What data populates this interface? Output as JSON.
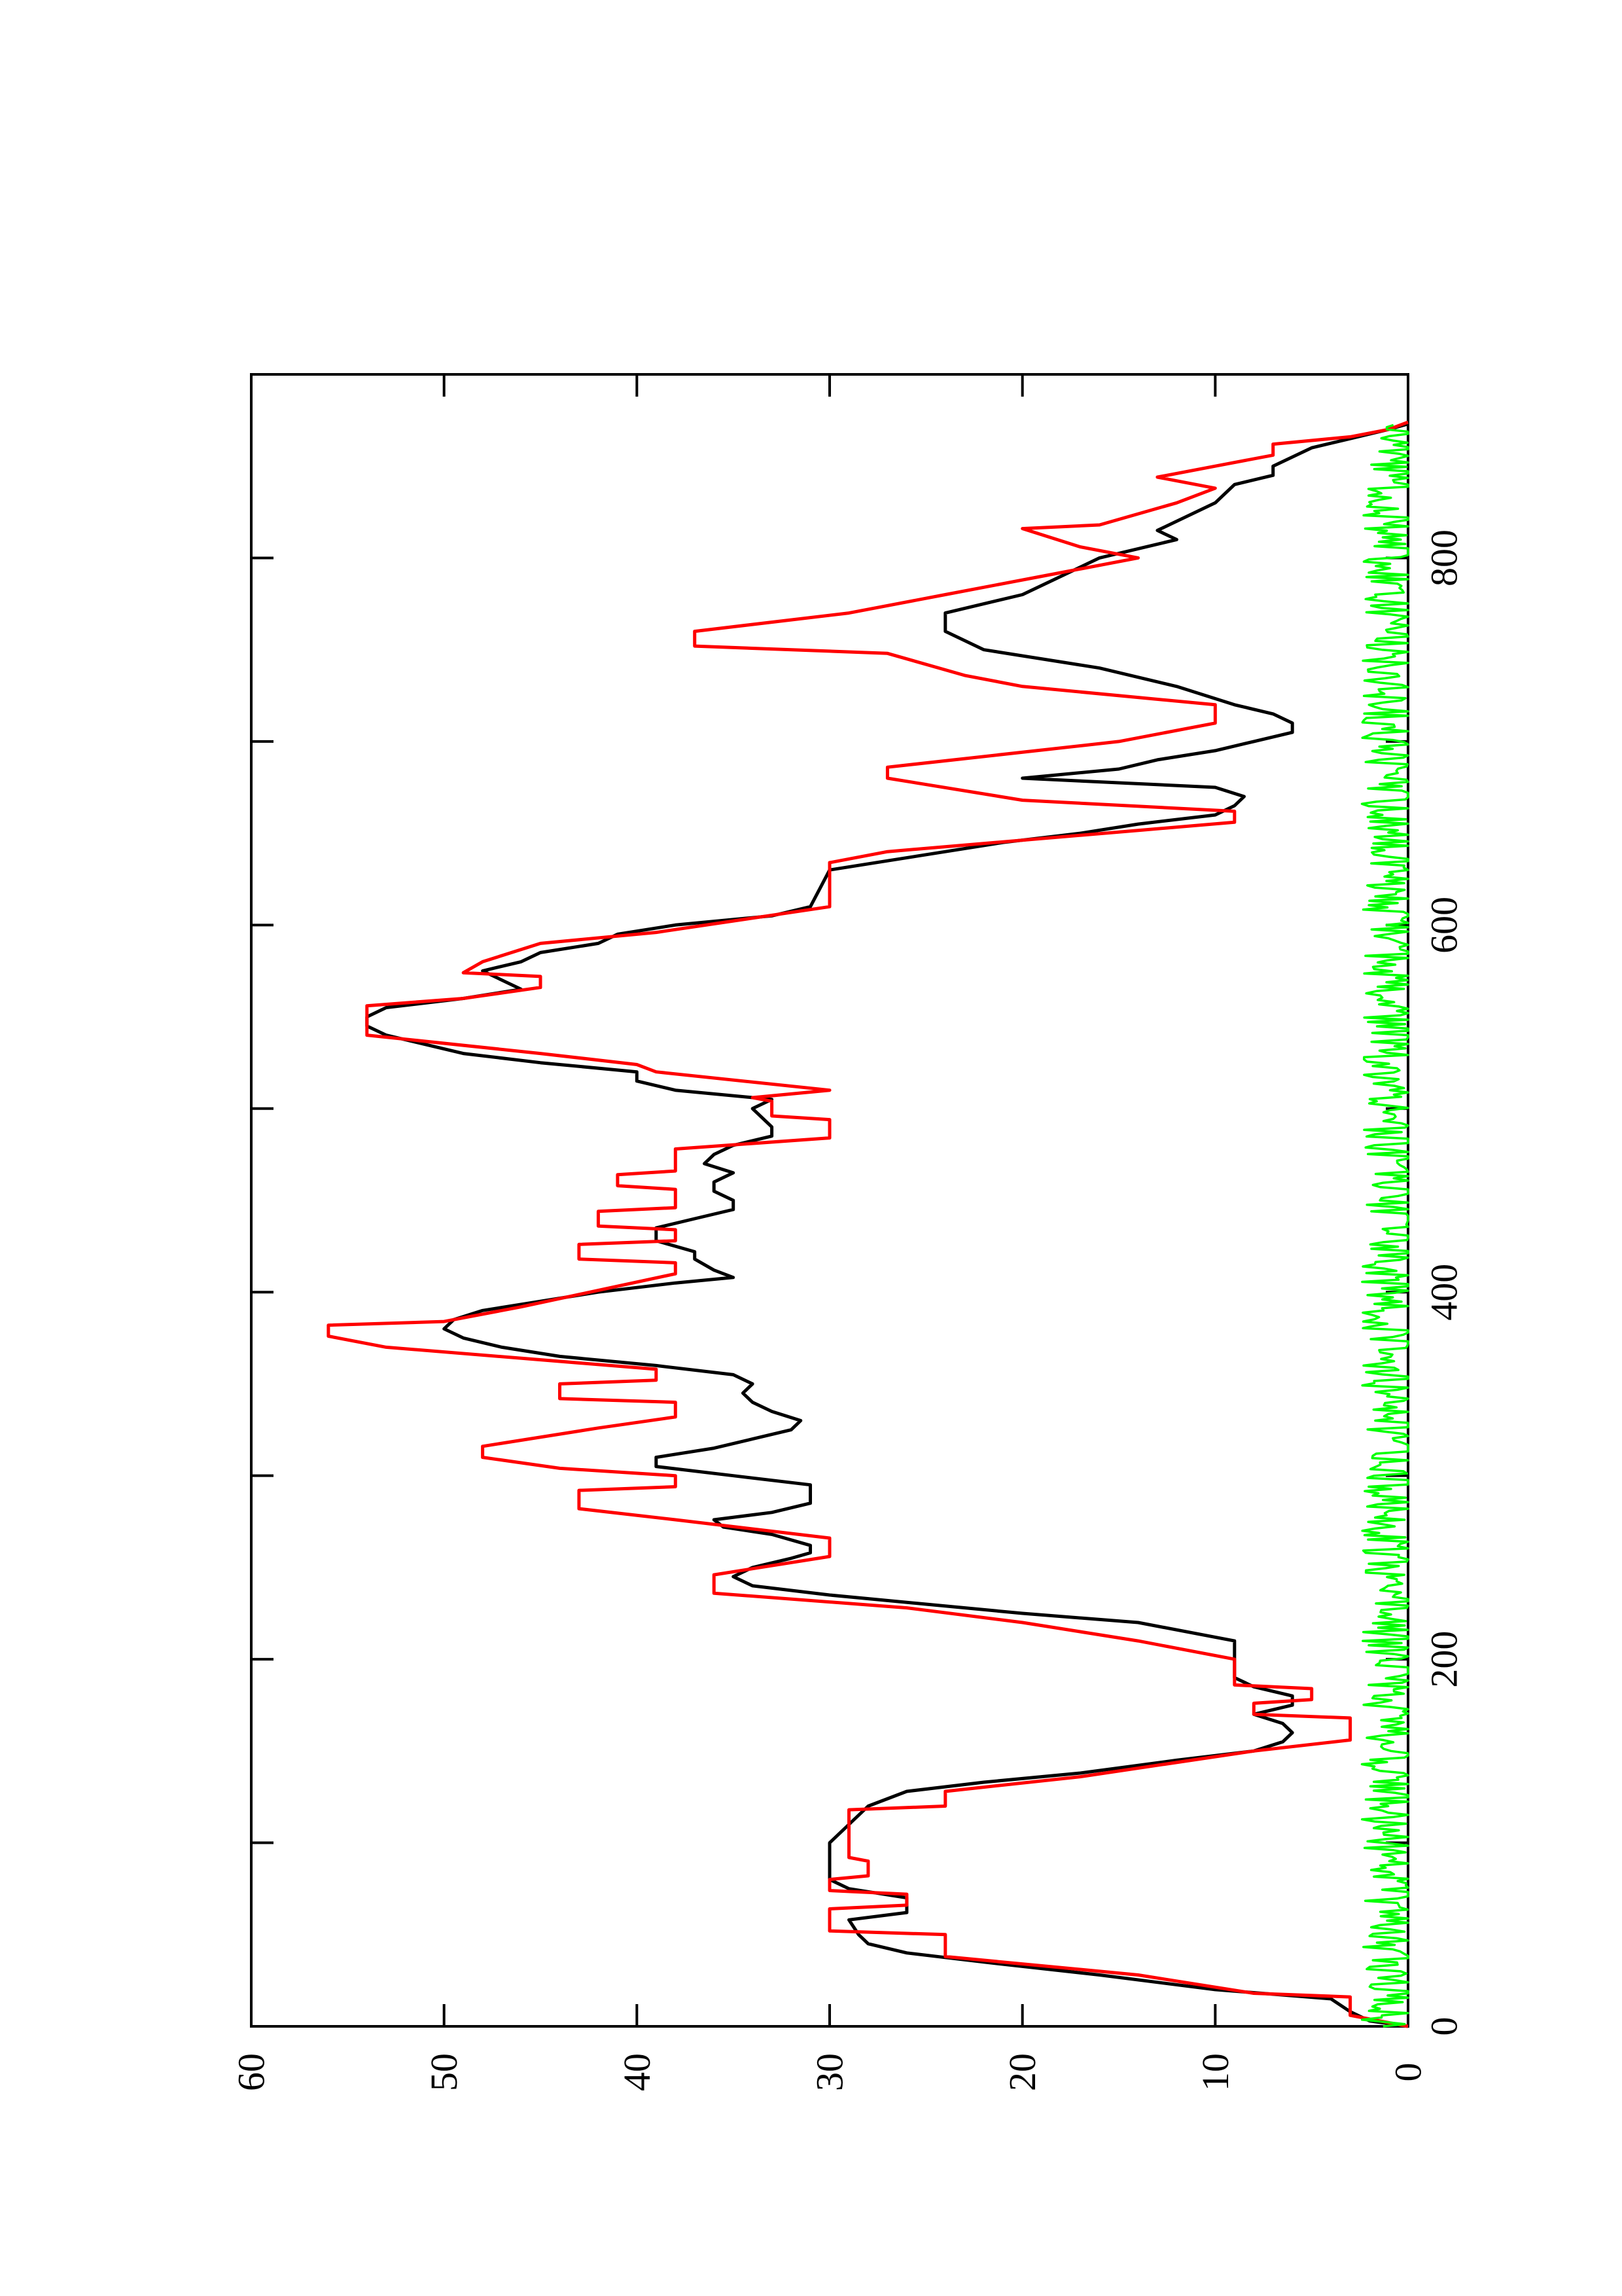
{
  "chart_data": {
    "type": "line",
    "orientation": "rotated-90-clockwise",
    "title": "",
    "xlabel": "",
    "ylabel": "",
    "xlim": [
      0,
      900
    ],
    "ylim": [
      0,
      60
    ],
    "x_ticks": [
      "0",
      "200",
      "400",
      "600",
      "800"
    ],
    "y_ticks": [
      "0",
      "10",
      "20",
      "30",
      "40",
      "50",
      "60"
    ],
    "grid": false,
    "legend": "none",
    "series": [
      {
        "color": "#000000",
        "style": "smooth",
        "points": [
          [
            0,
            0
          ],
          [
            3,
            2
          ],
          [
            8,
            3
          ],
          [
            15,
            4
          ],
          [
            20,
            10
          ],
          [
            28,
            16
          ],
          [
            35,
            22
          ],
          [
            40,
            26
          ],
          [
            45,
            28
          ],
          [
            50,
            28.5
          ],
          [
            58,
            29
          ],
          [
            62,
            26
          ],
          [
            70,
            26
          ],
          [
            75,
            29
          ],
          [
            80,
            30
          ],
          [
            85,
            30
          ],
          [
            90,
            30
          ],
          [
            95,
            30
          ],
          [
            100,
            30
          ],
          [
            110,
            29
          ],
          [
            120,
            28
          ],
          [
            128,
            26
          ],
          [
            133,
            22
          ],
          [
            138,
            17
          ],
          [
            145,
            12
          ],
          [
            150,
            8
          ],
          [
            155,
            6.5
          ],
          [
            160,
            6
          ],
          [
            165,
            6.5
          ],
          [
            170,
            8
          ],
          [
            175,
            6
          ],
          [
            180,
            6
          ],
          [
            185,
            8
          ],
          [
            190,
            9
          ],
          [
            200,
            9
          ],
          [
            210,
            9
          ],
          [
            220,
            14
          ],
          [
            225,
            20
          ],
          [
            230,
            25
          ],
          [
            235,
            30
          ],
          [
            240,
            34
          ],
          [
            245,
            35
          ],
          [
            250,
            34
          ],
          [
            255,
            32
          ],
          [
            258,
            31
          ],
          [
            262,
            31
          ],
          [
            268,
            33
          ],
          [
            272,
            35.5
          ],
          [
            276,
            36
          ],
          [
            280,
            33
          ],
          [
            285,
            31
          ],
          [
            290,
            31
          ],
          [
            295,
            31
          ],
          [
            300,
            35
          ],
          [
            305,
            39
          ],
          [
            310,
            39
          ],
          [
            315,
            36
          ],
          [
            320,
            34
          ],
          [
            325,
            32
          ],
          [
            330,
            31.5
          ],
          [
            335,
            33
          ],
          [
            340,
            34
          ],
          [
            345,
            34.5
          ],
          [
            350,
            34
          ],
          [
            355,
            35
          ],
          [
            360,
            39
          ],
          [
            365,
            44
          ],
          [
            370,
            47
          ],
          [
            375,
            49
          ],
          [
            380,
            50
          ],
          [
            385,
            49.5
          ],
          [
            390,
            48
          ],
          [
            395,
            45
          ],
          [
            400,
            42
          ],
          [
            405,
            38
          ],
          [
            408,
            35
          ],
          [
            412,
            36
          ],
          [
            418,
            37
          ],
          [
            422,
            37
          ],
          [
            428,
            39
          ],
          [
            435,
            39
          ],
          [
            440,
            37
          ],
          [
            445,
            35
          ],
          [
            450,
            35
          ],
          [
            455,
            36
          ],
          [
            460,
            36
          ],
          [
            465,
            35
          ],
          [
            470,
            36.5
          ],
          [
            475,
            36
          ],
          [
            480,
            35
          ],
          [
            485,
            33
          ],
          [
            490,
            33
          ],
          [
            495,
            33.5
          ],
          [
            500,
            34
          ],
          [
            505,
            33
          ],
          [
            510,
            38
          ],
          [
            515,
            40
          ],
          [
            520,
            40
          ],
          [
            525,
            45
          ],
          [
            530,
            49
          ],
          [
            535,
            51
          ],
          [
            540,
            53
          ],
          [
            545,
            54
          ],
          [
            550,
            54
          ],
          [
            555,
            53
          ],
          [
            560,
            49
          ],
          [
            565,
            46
          ],
          [
            570,
            47
          ],
          [
            575,
            48
          ],
          [
            580,
            46
          ],
          [
            585,
            45
          ],
          [
            590,
            42
          ],
          [
            595,
            41
          ],
          [
            600,
            38
          ],
          [
            605,
            33
          ],
          [
            610,
            31
          ],
          [
            620,
            30.5
          ],
          [
            630,
            30
          ],
          [
            635,
            27
          ],
          [
            640,
            24
          ],
          [
            645,
            21
          ],
          [
            650,
            17
          ],
          [
            655,
            14
          ],
          [
            660,
            10
          ],
          [
            665,
            9
          ],
          [
            670,
            8.5
          ],
          [
            675,
            10
          ],
          [
            680,
            20
          ],
          [
            685,
            15
          ],
          [
            690,
            13
          ],
          [
            695,
            10
          ],
          [
            700,
            8
          ],
          [
            705,
            6
          ],
          [
            710,
            6
          ],
          [
            715,
            7
          ],
          [
            720,
            9
          ],
          [
            730,
            12
          ],
          [
            740,
            16
          ],
          [
            750,
            22
          ],
          [
            760,
            24
          ],
          [
            770,
            24
          ],
          [
            780,
            20
          ],
          [
            790,
            18
          ],
          [
            800,
            16
          ],
          [
            810,
            12
          ],
          [
            815,
            13
          ],
          [
            820,
            12
          ],
          [
            830,
            10
          ],
          [
            840,
            9
          ],
          [
            845,
            7
          ],
          [
            850,
            7
          ],
          [
            855,
            6
          ],
          [
            860,
            5
          ],
          [
            865,
            3
          ],
          [
            870,
            1
          ],
          [
            873,
            0
          ]
        ]
      },
      {
        "color": "#ff0000",
        "style": "step",
        "points": [
          [
            0,
            0
          ],
          [
            4,
            2
          ],
          [
            6,
            3
          ],
          [
            16,
            3
          ],
          [
            18,
            8
          ],
          [
            28,
            14
          ],
          [
            38,
            24
          ],
          [
            50,
            24
          ],
          [
            52,
            30
          ],
          [
            64,
            30
          ],
          [
            66,
            26
          ],
          [
            72,
            26
          ],
          [
            74,
            30
          ],
          [
            80,
            30
          ],
          [
            82,
            28
          ],
          [
            90,
            28
          ],
          [
            92,
            29
          ],
          [
            118,
            29
          ],
          [
            120,
            24
          ],
          [
            128,
            24
          ],
          [
            136,
            17
          ],
          [
            150,
            8
          ],
          [
            156,
            3
          ],
          [
            168,
            3
          ],
          [
            170,
            8
          ],
          [
            176,
            8
          ],
          [
            178,
            5
          ],
          [
            184,
            5
          ],
          [
            186,
            9
          ],
          [
            200,
            9
          ],
          [
            210,
            14
          ],
          [
            220,
            20
          ],
          [
            228,
            26
          ],
          [
            236,
            36
          ],
          [
            246,
            36
          ],
          [
            256,
            30
          ],
          [
            266,
            30
          ],
          [
            276,
            38
          ],
          [
            282,
            43
          ],
          [
            292,
            43
          ],
          [
            294,
            38
          ],
          [
            300,
            38
          ],
          [
            304,
            44
          ],
          [
            310,
            48
          ],
          [
            316,
            48
          ],
          [
            326,
            42
          ],
          [
            332,
            38
          ],
          [
            340,
            38
          ],
          [
            342,
            44
          ],
          [
            350,
            44
          ],
          [
            352,
            39
          ],
          [
            358,
            39
          ],
          [
            370,
            53
          ],
          [
            376,
            56
          ],
          [
            382,
            56
          ],
          [
            384,
            50
          ],
          [
            392,
            46
          ],
          [
            410,
            38
          ],
          [
            416,
            38
          ],
          [
            418,
            43
          ],
          [
            426,
            43
          ],
          [
            428,
            38
          ],
          [
            434,
            38
          ],
          [
            436,
            42
          ],
          [
            444,
            42
          ],
          [
            446,
            38
          ],
          [
            456,
            38
          ],
          [
            458,
            41
          ],
          [
            464,
            41
          ],
          [
            466,
            38
          ],
          [
            478,
            38
          ],
          [
            484,
            30
          ],
          [
            494,
            30
          ],
          [
            496,
            33
          ],
          [
            504,
            33
          ],
          [
            506,
            34
          ],
          [
            510,
            30
          ],
          [
            520,
            39
          ],
          [
            524,
            40
          ],
          [
            530,
            45
          ],
          [
            540,
            54
          ],
          [
            556,
            54
          ],
          [
            560,
            49
          ],
          [
            566,
            45
          ],
          [
            572,
            45
          ],
          [
            574,
            49
          ],
          [
            580,
            48
          ],
          [
            590,
            45
          ],
          [
            596,
            39
          ],
          [
            610,
            30
          ],
          [
            634,
            30
          ],
          [
            640,
            27
          ],
          [
            656,
            9
          ],
          [
            662,
            9
          ],
          [
            668,
            20
          ],
          [
            680,
            27
          ],
          [
            686,
            27
          ],
          [
            700,
            15
          ],
          [
            710,
            10
          ],
          [
            720,
            10
          ],
          [
            724,
            14
          ],
          [
            730,
            20
          ],
          [
            736,
            23
          ],
          [
            748,
            27
          ],
          [
            752,
            37
          ],
          [
            760,
            37
          ],
          [
            770,
            29
          ],
          [
            780,
            24
          ],
          [
            790,
            19
          ],
          [
            800,
            14
          ],
          [
            806,
            17
          ],
          [
            816,
            20
          ],
          [
            818,
            16
          ],
          [
            824,
            14
          ],
          [
            830,
            12
          ],
          [
            838,
            10
          ],
          [
            844,
            13
          ],
          [
            850,
            10
          ],
          [
            856,
            7
          ],
          [
            862,
            7
          ],
          [
            866,
            3
          ],
          [
            870,
            1
          ],
          [
            874,
            0
          ]
        ]
      },
      {
        "color": "#00ff00",
        "style": "noise",
        "baseline": 0.8,
        "noise_amplitude": 1.6,
        "x_range": [
          0,
          873
        ]
      }
    ]
  }
}
